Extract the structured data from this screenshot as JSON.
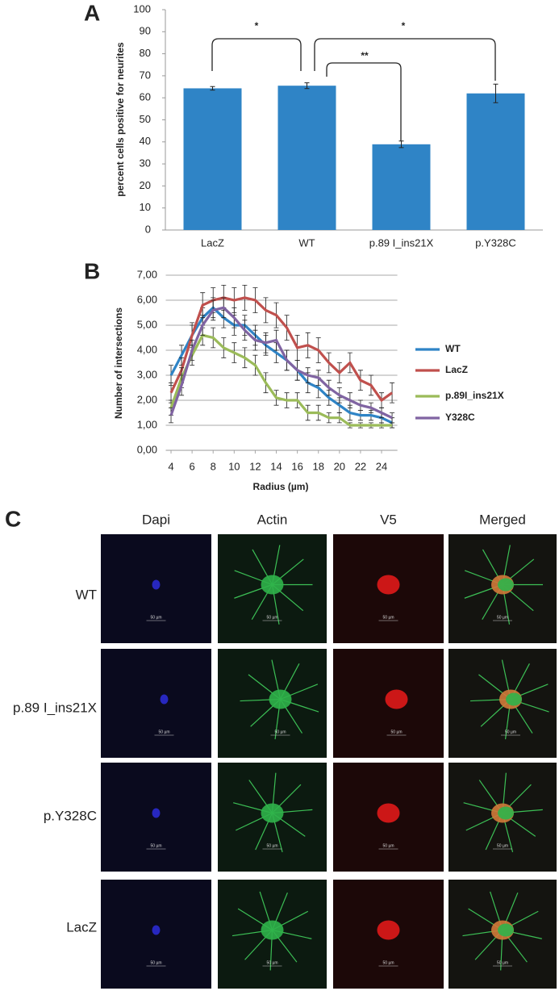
{
  "chart_data": [
    {
      "type": "bar",
      "panel_label": "A",
      "y_label": "percent cells positive for  neurites",
      "categories": [
        "LacZ",
        "WT",
        "p.89 I_ins21X",
        "p.Y328C"
      ],
      "values": [
        64.3,
        65.5,
        38.9,
        62.0
      ],
      "errors": [
        0.8,
        1.3,
        1.5,
        4.2
      ],
      "color": "#2f84c6",
      "ylim": [
        0,
        100
      ],
      "yticks": [
        0,
        10,
        20,
        30,
        40,
        50,
        60,
        70,
        80,
        90,
        100
      ],
      "annotations": [
        "*",
        "**",
        "*"
      ]
    },
    {
      "type": "line",
      "panel_label": "B",
      "x_label": "Radius (µm)",
      "y_label": "Number of intersections",
      "x": [
        4,
        5,
        6,
        7,
        8,
        9,
        10,
        11,
        12,
        13,
        14,
        15,
        16,
        17,
        18,
        19,
        20,
        21,
        22,
        23,
        24,
        25
      ],
      "xlim": [
        3.5,
        25.5
      ],
      "xticks": [
        4,
        6,
        8,
        10,
        12,
        14,
        16,
        18,
        20,
        22,
        24
      ],
      "ylim": [
        0,
        7
      ],
      "yticks": [
        {
          "value": 0,
          "label": "0,00"
        },
        {
          "value": 1,
          "label": "1,00"
        },
        {
          "value": 2,
          "label": "2,00"
        },
        {
          "value": 3,
          "label": "3,00"
        },
        {
          "value": 4,
          "label": "4,00"
        },
        {
          "value": 5,
          "label": "5,00"
        },
        {
          "value": 6,
          "label": "6,00"
        },
        {
          "value": 7,
          "label": "7,00"
        }
      ],
      "grid": true,
      "series": [
        {
          "name": "WT",
          "color": "#2f84c6",
          "values": [
            3.0,
            3.8,
            4.6,
            5.3,
            5.7,
            5.3,
            5.0,
            5.0,
            4.6,
            4.2,
            3.9,
            3.6,
            3.2,
            2.7,
            2.5,
            2.1,
            1.8,
            1.5,
            1.4,
            1.4,
            1.3,
            1.1
          ],
          "errors": [
            0.4,
            0.4,
            0.4,
            0.4,
            0.4,
            0.4,
            0.4,
            0.4,
            0.4,
            0.4,
            0.4,
            0.4,
            0.4,
            0.4,
            0.4,
            0.3,
            0.3,
            0.3,
            0.2,
            0.2,
            0.2,
            0.2
          ]
        },
        {
          "name": "LacZ",
          "color": "#c0504d",
          "values": [
            2.3,
            3.2,
            4.6,
            5.8,
            6.0,
            6.1,
            6.0,
            6.1,
            6.0,
            5.6,
            5.4,
            4.9,
            4.1,
            4.2,
            4.0,
            3.5,
            3.1,
            3.5,
            2.8,
            2.6,
            2.0,
            2.3
          ],
          "errors": [
            0.4,
            0.5,
            0.5,
            0.5,
            0.5,
            0.5,
            0.5,
            0.5,
            0.5,
            0.5,
            0.5,
            0.5,
            0.5,
            0.5,
            0.5,
            0.4,
            0.4,
            0.4,
            0.4,
            0.4,
            0.3,
            0.4
          ]
        },
        {
          "name": "p.89I_ins21X",
          "color": "#9bbb59",
          "values": [
            1.7,
            2.9,
            3.8,
            4.6,
            4.5,
            4.1,
            3.9,
            3.7,
            3.4,
            2.7,
            2.1,
            2.0,
            2.0,
            1.5,
            1.5,
            1.3,
            1.3,
            1.0,
            1.0,
            1.0,
            1.0,
            1.0
          ],
          "errors": [
            0.3,
            0.4,
            0.4,
            0.4,
            0.4,
            0.4,
            0.4,
            0.4,
            0.4,
            0.4,
            0.3,
            0.3,
            0.3,
            0.3,
            0.3,
            0.2,
            0.2,
            0.1,
            0.1,
            0.1,
            0.1,
            0.1
          ]
        },
        {
          "name": "Y328C",
          "color": "#8064a2",
          "values": [
            1.4,
            2.6,
            4.0,
            5.0,
            5.6,
            5.7,
            5.3,
            4.8,
            4.4,
            4.3,
            4.4,
            3.6,
            3.2,
            3.0,
            2.9,
            2.5,
            2.2,
            2.0,
            1.8,
            1.7,
            1.5,
            1.3
          ],
          "errors": [
            0.3,
            0.4,
            0.4,
            0.4,
            0.4,
            0.4,
            0.4,
            0.4,
            0.4,
            0.4,
            0.4,
            0.4,
            0.4,
            0.3,
            0.3,
            0.3,
            0.3,
            0.3,
            0.2,
            0.2,
            0.2,
            0.2
          ]
        }
      ]
    }
  ],
  "panel_c": {
    "panel_label": "C",
    "columns": [
      "Dapi",
      "Actin",
      "V5",
      "Merged"
    ],
    "rows": [
      "WT",
      "p.89 I_ins21X",
      "p.Y328C",
      "LacZ"
    ],
    "scale_label": "50 µm"
  }
}
